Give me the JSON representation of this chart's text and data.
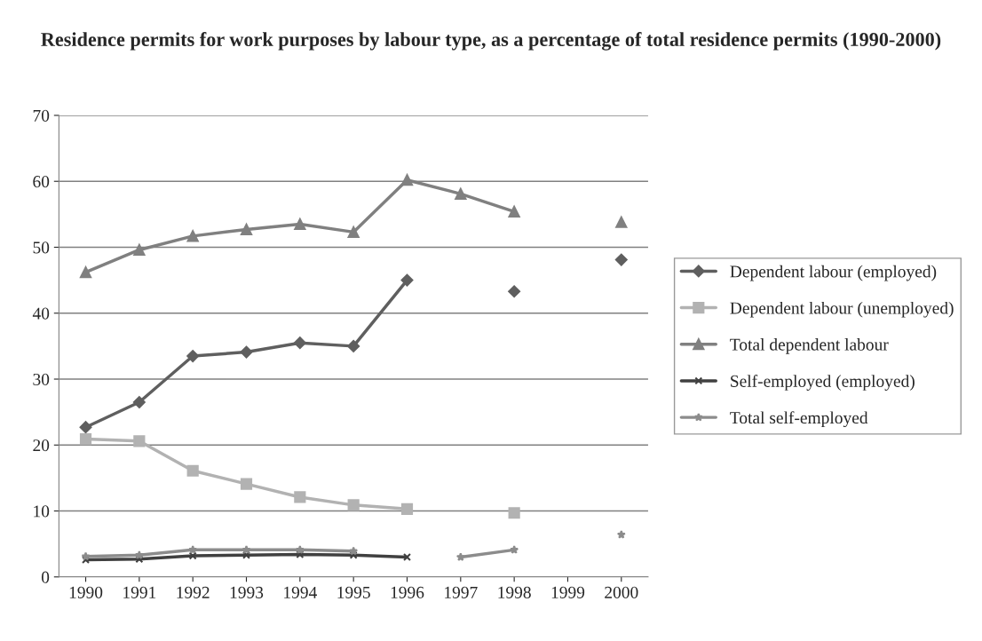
{
  "chart_data": {
    "type": "line",
    "title": "Residence permits for work purposes by labour type, as a percentage of total residence permits (1990-2000)",
    "categories": [
      "1990",
      "1991",
      "1992",
      "1993",
      "1994",
      "1995",
      "1996",
      "1997",
      "1998",
      "1999",
      "2000"
    ],
    "series": [
      {
        "name": "Dependent labour (employed)",
        "color": "#5f5f5f",
        "marker": "diamond",
        "values": [
          22.7,
          26.5,
          33.5,
          34.1,
          35.5,
          35.0,
          45.0,
          null,
          43.3,
          null,
          48.1
        ]
      },
      {
        "name": "Dependent labour (unemployed)",
        "color": "#b2b2b2",
        "marker": "square",
        "values": [
          20.9,
          20.6,
          16.1,
          14.1,
          12.1,
          10.9,
          10.3,
          null,
          9.7,
          null,
          null
        ]
      },
      {
        "name": "Total dependent labour",
        "color": "#808080",
        "marker": "triangle",
        "values": [
          46.2,
          49.6,
          51.7,
          52.7,
          53.5,
          52.3,
          60.2,
          58.1,
          55.4,
          null,
          53.8
        ]
      },
      {
        "name": "Self-employed (employed)",
        "color": "#404040",
        "marker": "cross",
        "values": [
          2.6,
          2.7,
          3.2,
          3.3,
          3.4,
          3.3,
          3.0,
          null,
          null,
          null,
          null
        ]
      },
      {
        "name": "Total self-employed",
        "color": "#8c8c8c",
        "marker": "star",
        "values": [
          3.1,
          3.3,
          4.1,
          4.1,
          4.1,
          3.9,
          null,
          3.0,
          4.1,
          null,
          6.4
        ]
      }
    ],
    "ylim": [
      0,
      70
    ],
    "yticks": [
      0,
      10,
      20,
      30,
      40,
      50,
      60,
      70
    ],
    "grid": "y",
    "legend": "right"
  }
}
